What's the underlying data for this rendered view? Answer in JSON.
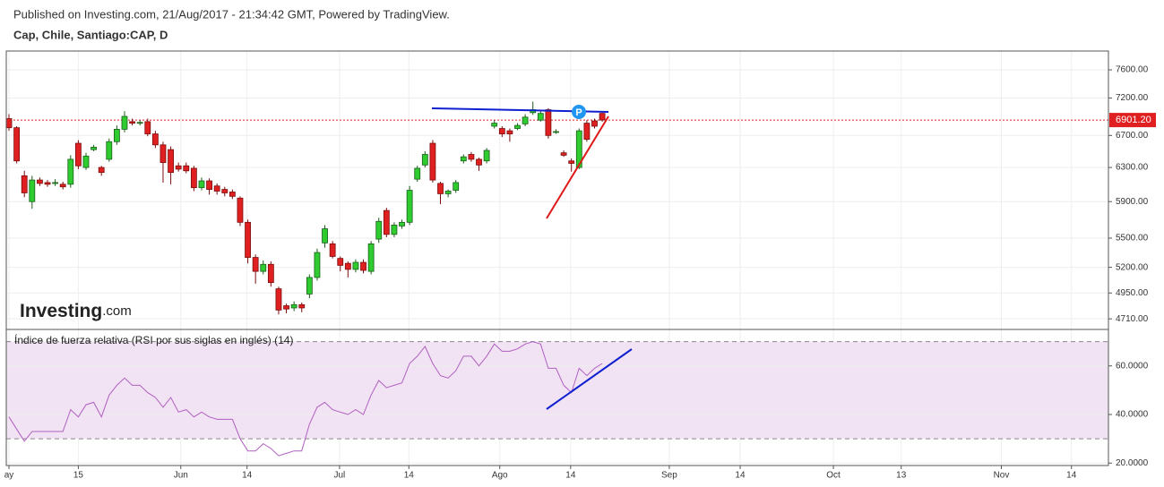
{
  "header": {
    "published": "Published on Investing.com, 21/Aug/2017 - 21:34:42 GMT, Powered by TradingView."
  },
  "chart_data": [
    {
      "type": "candlestick",
      "title": "Cap, Chile, Santiago:CAP, D",
      "watermark": "Investing",
      "watermark_suffix": ".com",
      "marker": "P",
      "up_color": "#2ecc2e",
      "down_color": "#e02020",
      "opens": [
        6920,
        6800,
        6200,
        5900,
        6150,
        6120,
        6110,
        6100,
        6100,
        6600,
        6300,
        6520,
        6300,
        6400,
        6620,
        6780,
        6880,
        6860,
        6880,
        6720,
        6580,
        6520,
        6320,
        6320,
        6290,
        6060,
        6140,
        6080,
        6040,
        6010,
        5940,
        5670,
        5300,
        5160,
        5230,
        4990,
        4830,
        4810,
        4840,
        4940,
        5100,
        5450,
        5440,
        5290,
        5240,
        5180,
        5250,
        5160,
        5490,
        5800,
        5540,
        5630,
        5670,
        6160,
        6330,
        6600,
        6110,
        5990,
        6030,
        6380,
        6460,
        6400,
        6380,
        6820,
        6790,
        6760,
        6790,
        6850,
        7000,
        6900,
        7040,
        6740,
        6480,
        6380,
        6300,
        6860,
        6890,
        6990
      ],
      "highs": [
        6980,
        6820,
        6260,
        6200,
        6180,
        6150,
        6160,
        6130,
        6450,
        6640,
        6480,
        6580,
        6320,
        6660,
        6830,
        7020,
        6920,
        6900,
        6920,
        6760,
        6620,
        6560,
        6360,
        6360,
        6320,
        6180,
        6170,
        6110,
        6070,
        6040,
        5960,
        5700,
        5330,
        5270,
        5260,
        5010,
        4850,
        4870,
        4860,
        5130,
        5390,
        5640,
        5470,
        5310,
        5260,
        5280,
        5280,
        5470,
        5720,
        5830,
        5670,
        5700,
        6080,
        6320,
        6500,
        6640,
        6130,
        6040,
        6150,
        6460,
        6490,
        6420,
        6540,
        6900,
        6820,
        6790,
        6860,
        6980,
        7150,
        7030,
        7060,
        6780,
        6510,
        6410,
        6790,
        6900,
        6920,
        7000
      ],
      "lows": [
        6760,
        6350,
        5950,
        5820,
        6080,
        6070,
        6080,
        6040,
        6060,
        6280,
        6270,
        6500,
        6200,
        6370,
        6580,
        6740,
        6830,
        6830,
        6690,
        6540,
        6120,
        6100,
        6250,
        6230,
        6020,
        6030,
        5980,
        5980,
        5960,
        5930,
        5630,
        5240,
        5040,
        5130,
        5010,
        4750,
        4760,
        4780,
        4770,
        4900,
        5070,
        5400,
        5290,
        5160,
        5100,
        5150,
        5140,
        5130,
        5450,
        5510,
        5510,
        5600,
        5640,
        6130,
        6300,
        6120,
        5870,
        5950,
        6000,
        6350,
        6370,
        6260,
        6350,
        6790,
        6680,
        6620,
        6770,
        6820,
        6970,
        6880,
        6660,
        6720,
        6430,
        6250,
        6280,
        6620,
        6790,
        6880
      ],
      "closes": [
        6800,
        6380,
        6000,
        6150,
        6110,
        6100,
        6120,
        6070,
        6400,
        6320,
        6440,
        6550,
        6240,
        6620,
        6780,
        6950,
        6860,
        6870,
        6720,
        6580,
        6360,
        6240,
        6280,
        6260,
        6060,
        6140,
        6040,
        6020,
        6000,
        5960,
        5670,
        5300,
        5160,
        5230,
        5050,
        4790,
        4800,
        4840,
        4810,
        5100,
        5350,
        5600,
        5310,
        5220,
        5180,
        5250,
        5170,
        5440,
        5680,
        5540,
        5640,
        5670,
        6030,
        6290,
        6460,
        6150,
        5990,
        6020,
        6120,
        6430,
        6400,
        6330,
        6510,
        6860,
        6720,
        6720,
        6830,
        6940,
        7040,
        6990,
        6700,
        6750,
        6450,
        6350,
        6760,
        6650,
        6820,
        6901.2
      ],
      "last_value_label": "6901.20",
      "log_scale": true,
      "ylim": [
        4615,
        7880
      ],
      "yticks": [
        {
          "value": 7600,
          "label": "7600.00"
        },
        {
          "value": 7200,
          "label": "7200.00"
        },
        {
          "value": 6700,
          "label": "6700.00"
        },
        {
          "value": 6300,
          "label": "6300.00"
        },
        {
          "value": 5900,
          "label": "5900.00"
        },
        {
          "value": 5500,
          "label": "5500.00"
        },
        {
          "value": 5200,
          "label": "5200.00"
        },
        {
          "value": 4950,
          "label": "4950.00"
        },
        {
          "value": 4710,
          "label": "4710.00"
        }
      ],
      "grid": true
    },
    {
      "type": "line",
      "title": "Índice de fuerza relativa (RSI por sus siglas en inglés) (14)",
      "series": [
        {
          "color": "#b060c0",
          "values": [
            39,
            34,
            29,
            33,
            33,
            33,
            33,
            33,
            42,
            39,
            44,
            45,
            39,
            48,
            52,
            55,
            52,
            52,
            49,
            47,
            43,
            47,
            41,
            42,
            39,
            41,
            39,
            38,
            38,
            38,
            30,
            25,
            25,
            28,
            26,
            23,
            24,
            25,
            25,
            36,
            43,
            45,
            42,
            41,
            40,
            42,
            40,
            48,
            54,
            51,
            52,
            53,
            61,
            64,
            68,
            61,
            56,
            55,
            58,
            64,
            64,
            60,
            64,
            69,
            66,
            66,
            67,
            69,
            70,
            69,
            59,
            59,
            52,
            49,
            59,
            56,
            59,
            61
          ]
        }
      ],
      "levels": [
        30,
        70
      ],
      "band_color": "#f1e3f3",
      "ylim": [
        19,
        75
      ],
      "yticks": [
        {
          "value": 60,
          "label": "60.0000"
        },
        {
          "value": 40,
          "label": "40.0000"
        },
        {
          "value": 20,
          "label": "20.0000"
        }
      ],
      "xlim": [
        -0.35,
        142.7
      ],
      "xticks": [
        {
          "value": 0,
          "label": "ay"
        },
        {
          "value": 9,
          "label": "15"
        },
        {
          "value": 22.3,
          "label": "Jun"
        },
        {
          "value": 30.9,
          "label": "14"
        },
        {
          "value": 42.9,
          "label": "Jul"
        },
        {
          "value": 51.9,
          "label": "14"
        },
        {
          "value": 63.7,
          "label": "Ago"
        },
        {
          "value": 72.9,
          "label": "14"
        },
        {
          "value": 85.7,
          "label": "Sep"
        },
        {
          "value": 94.9,
          "label": "14"
        },
        {
          "value": 107,
          "label": "Oct"
        },
        {
          "value": 115.8,
          "label": "13"
        },
        {
          "value": 128.8,
          "label": "Nov"
        },
        {
          "value": 137.9,
          "label": "14"
        }
      ],
      "grid": true
    }
  ]
}
